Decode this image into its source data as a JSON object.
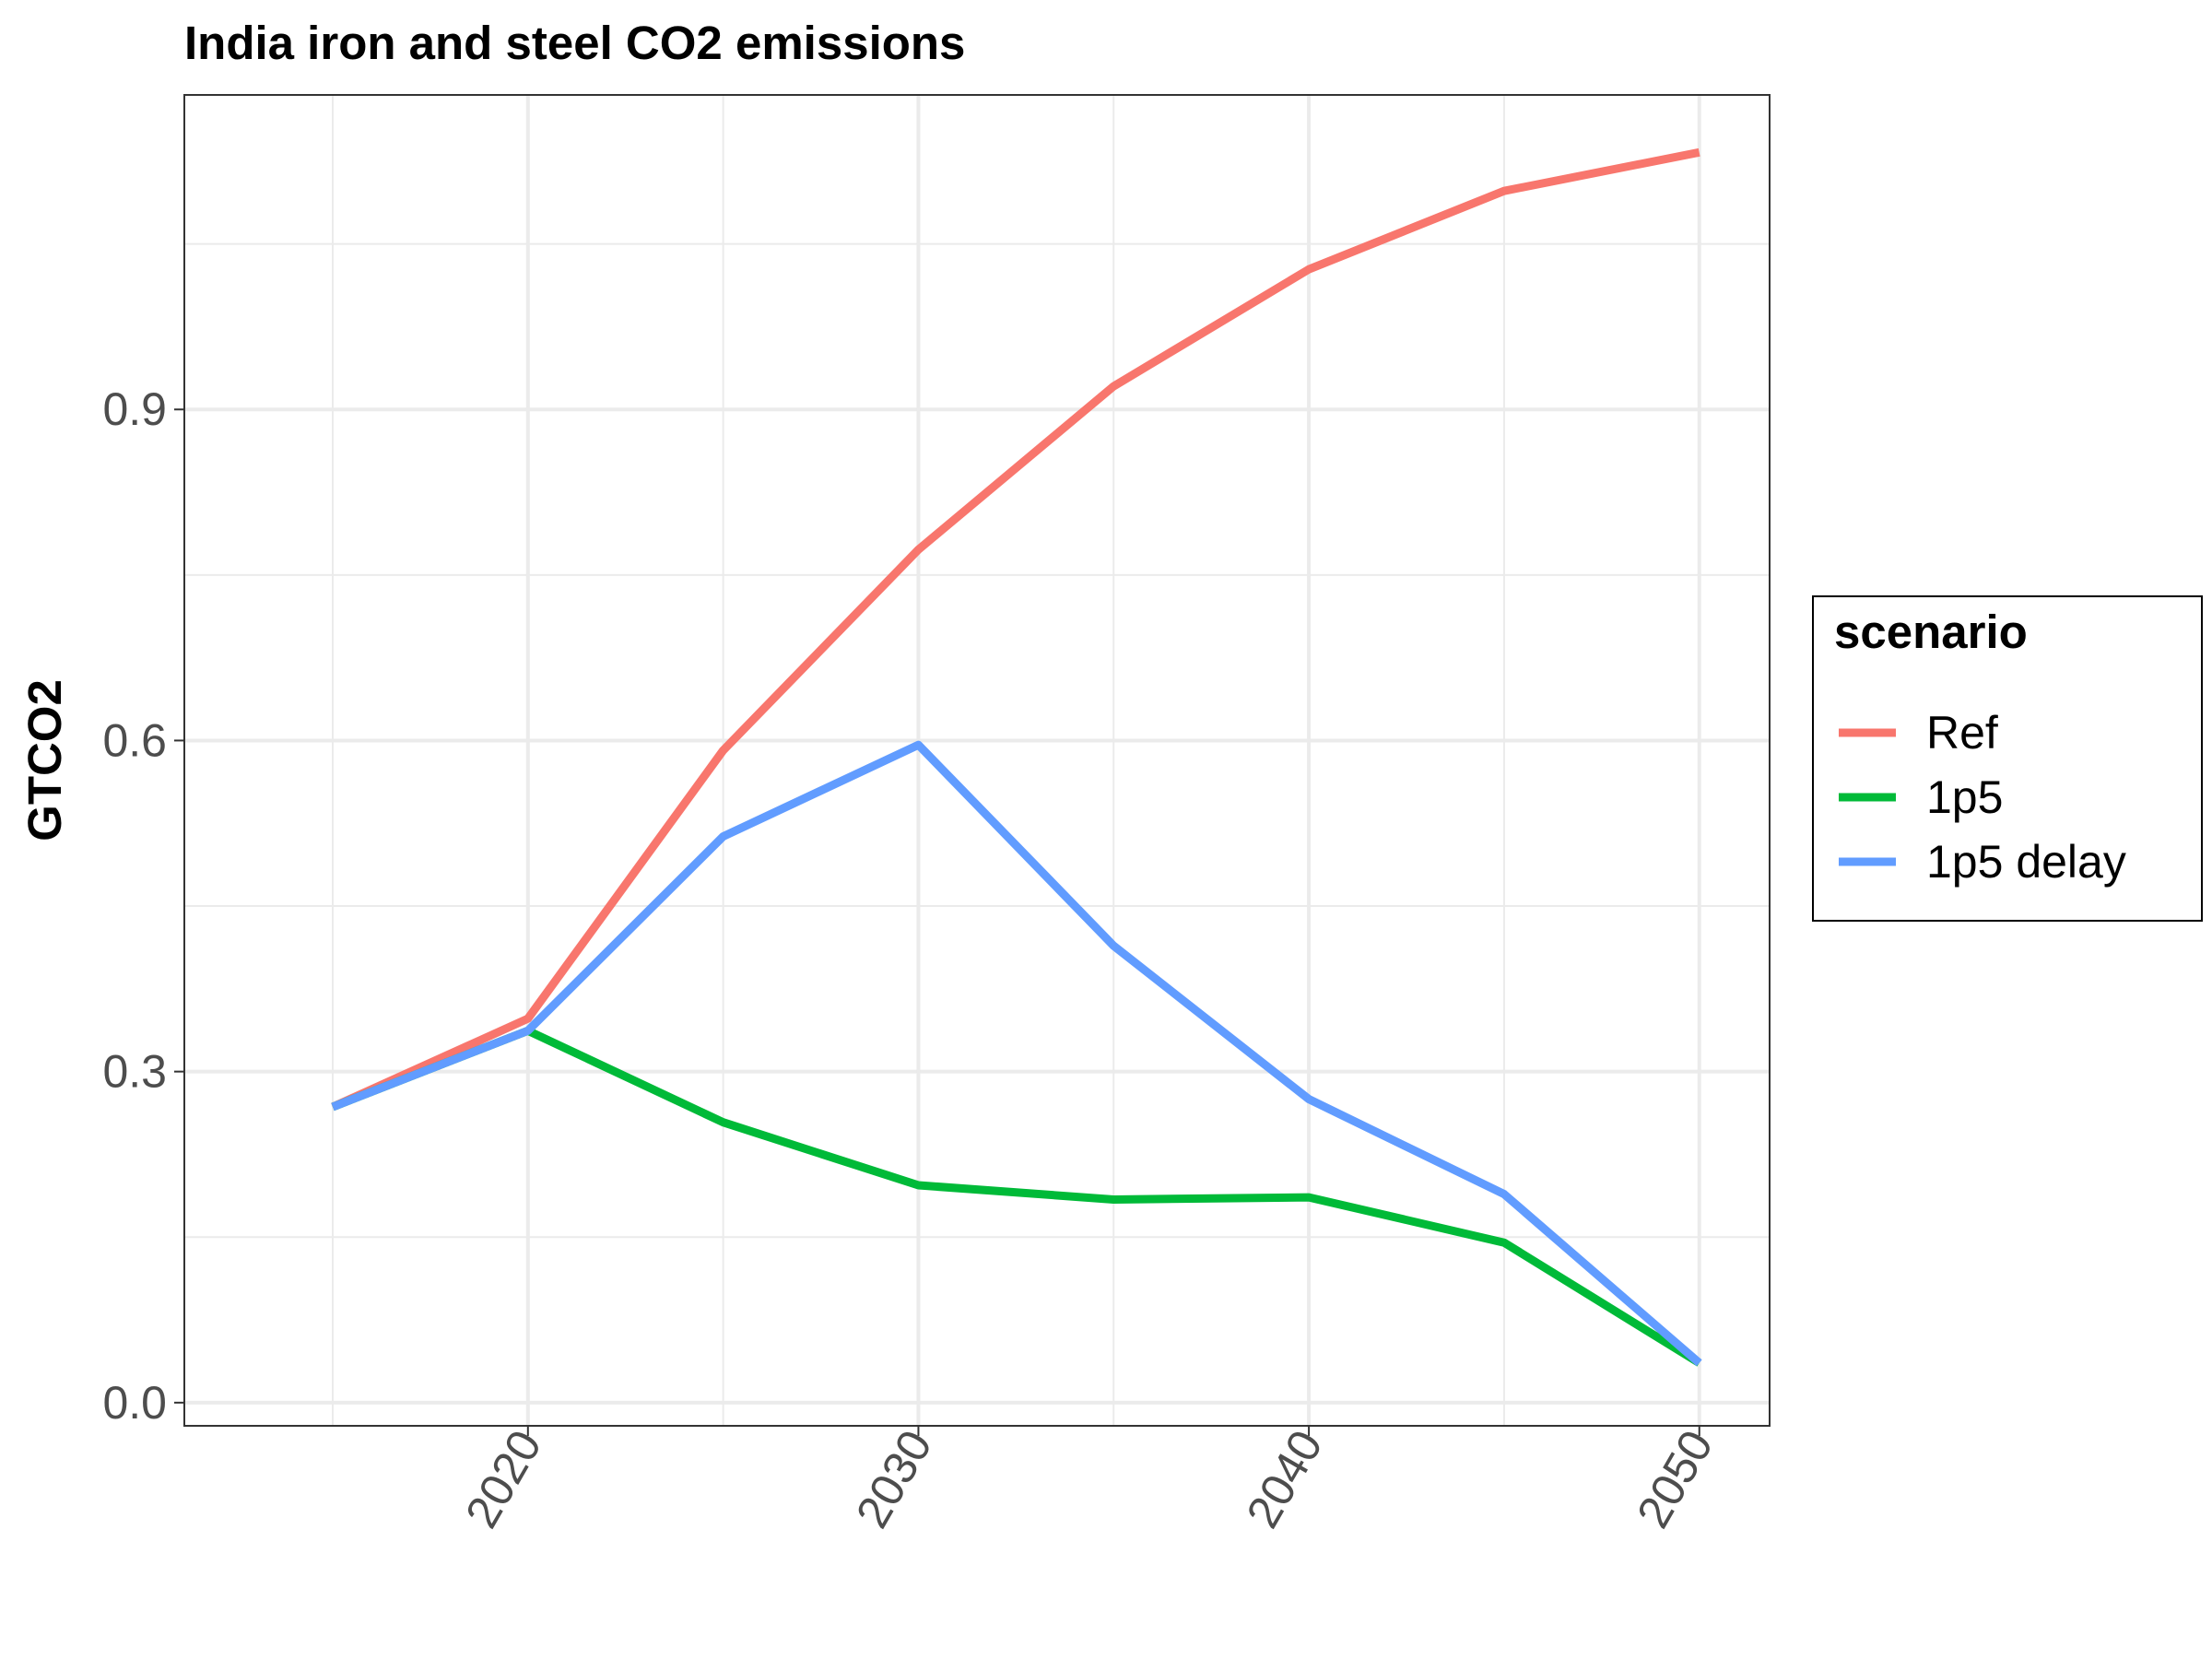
{
  "chart_data": {
    "type": "line",
    "title": "India iron and steel CO2 emissions",
    "xlabel": "",
    "ylabel": "GTCO2",
    "x": [
      2015,
      2020,
      2025,
      2030,
      2035,
      2040,
      2045,
      2050
    ],
    "xlim": [
      2011.2,
      2051.8
    ],
    "ylim": [
      -0.021,
      1.185
    ],
    "x_ticks": [
      2020,
      2030,
      2040,
      2050
    ],
    "x_tick_labels": [
      "2020",
      "2030",
      "2040",
      "2050"
    ],
    "y_ticks": [
      0.0,
      0.3,
      0.6,
      0.9
    ],
    "y_tick_labels": [
      "0.0",
      "0.3",
      "0.6",
      "0.9"
    ],
    "y_minor_ticks": [
      0.15,
      0.45,
      0.75,
      1.05
    ],
    "x_minor_ticks": [
      2015,
      2025,
      2035,
      2045
    ],
    "grid": true,
    "legend": {
      "title": "scenario",
      "placement": "right"
    },
    "series": [
      {
        "name": "Ref",
        "color": "#F8766D",
        "values": [
          0.268,
          0.348,
          0.591,
          0.773,
          0.921,
          1.027,
          1.098,
          1.133
        ]
      },
      {
        "name": "1p5",
        "color": "#00BA38",
        "values": [
          0.268,
          0.337,
          0.254,
          0.197,
          0.184,
          0.186,
          0.145,
          0.036
        ]
      },
      {
        "name": "1p5 delay",
        "color": "#619CFF",
        "values": [
          0.268,
          0.337,
          0.513,
          0.596,
          0.414,
          0.275,
          0.189,
          0.036
        ]
      }
    ]
  }
}
